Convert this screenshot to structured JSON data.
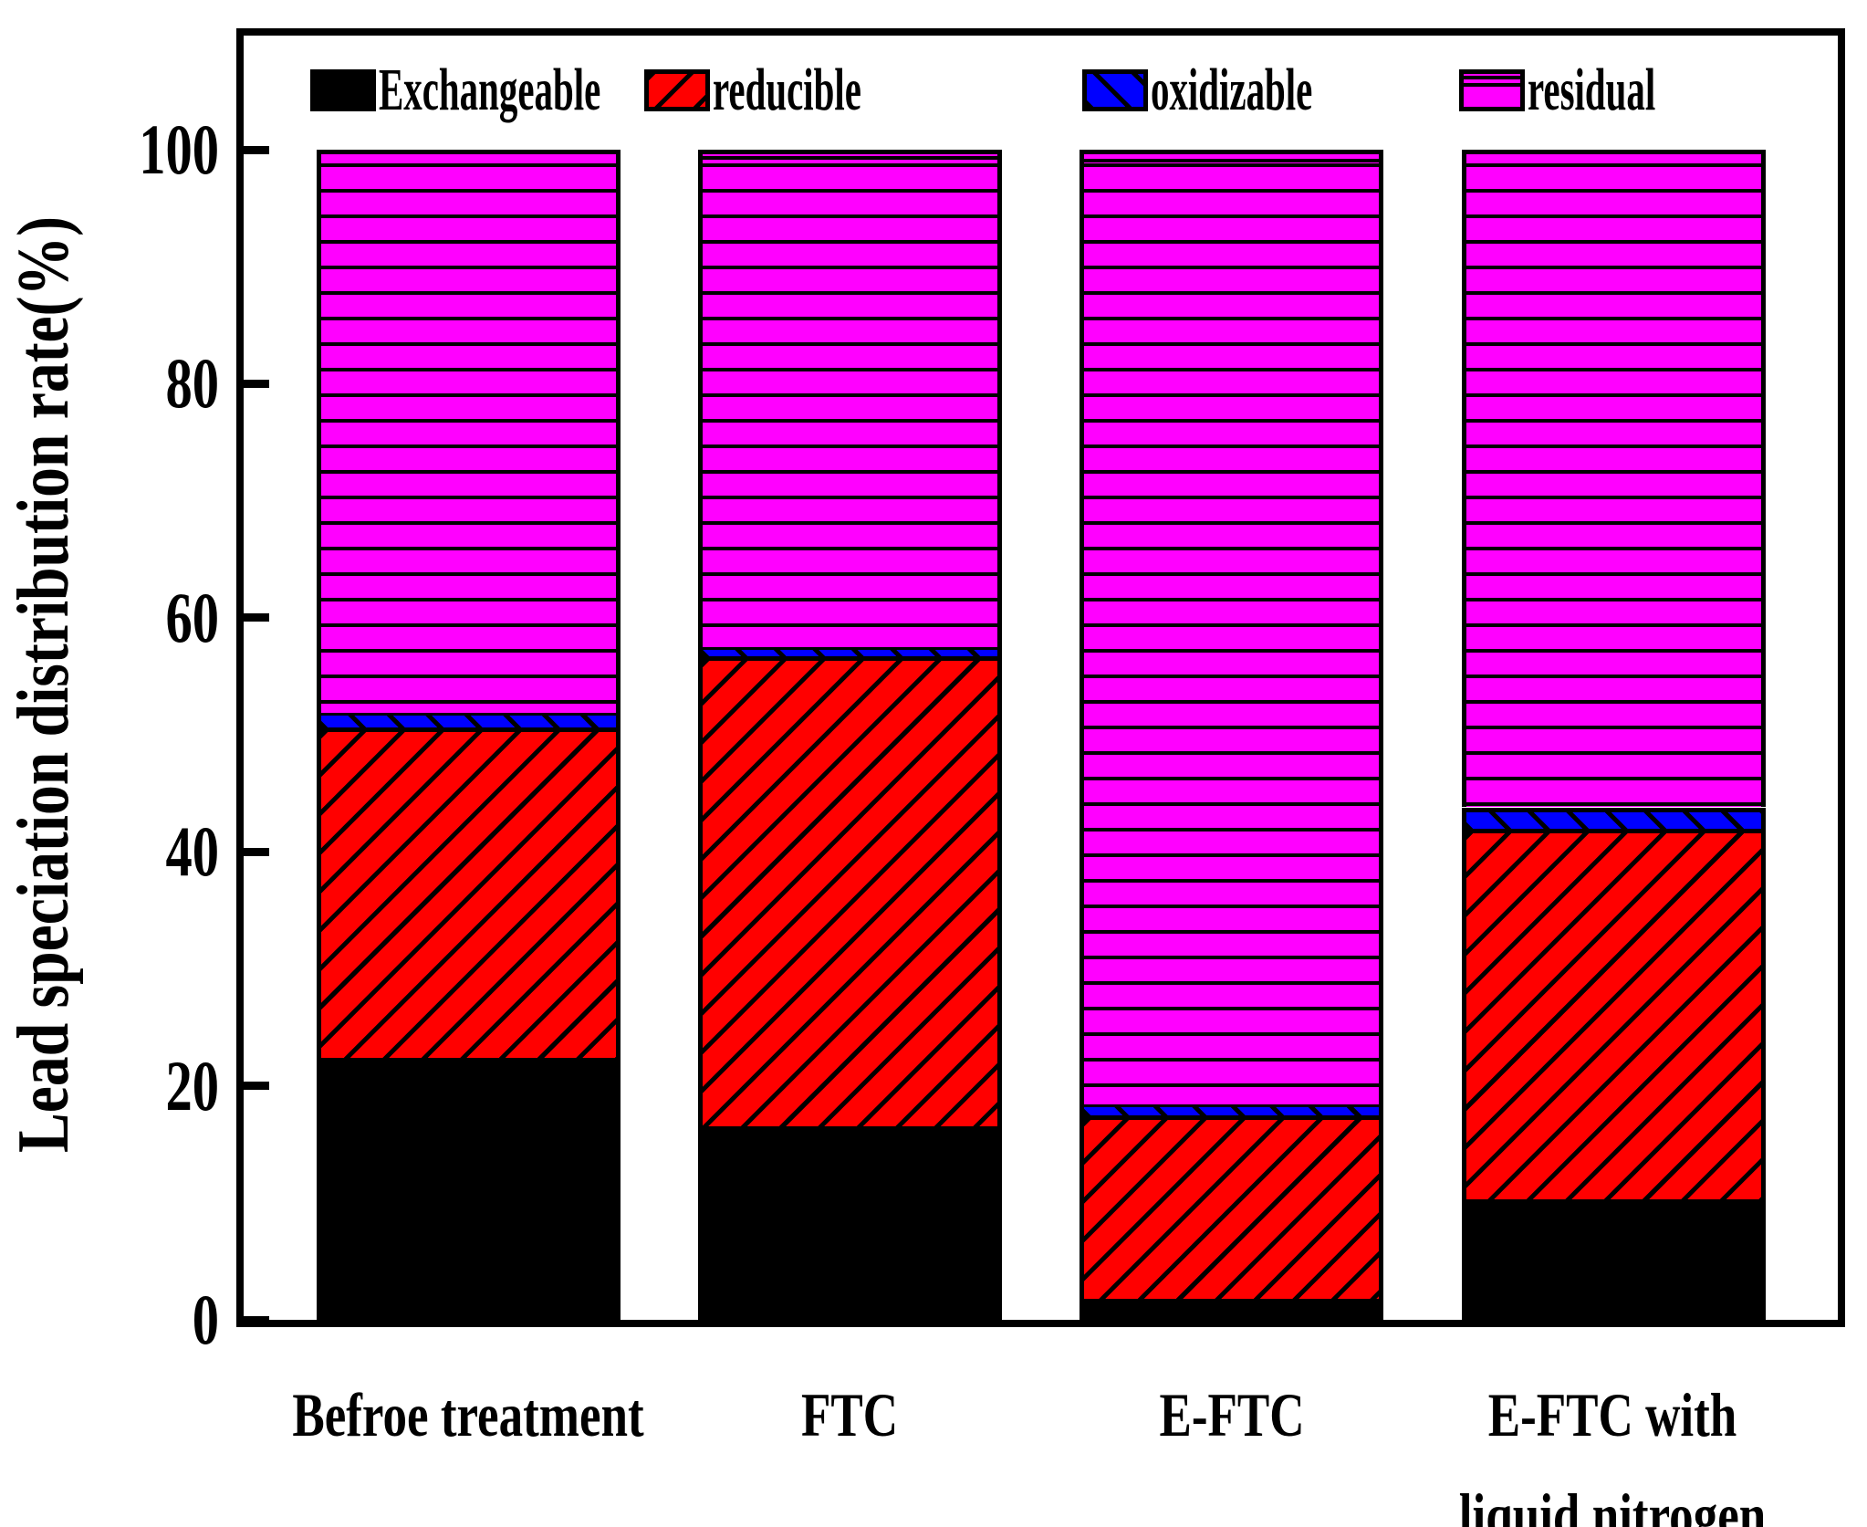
{
  "figure": {
    "background": "#ffffff",
    "frame_color": "#000000"
  },
  "chart_data": {
    "type": "bar",
    "stacked": true,
    "title": "",
    "xlabel": "",
    "ylabel": "Lead speciation distribution rate(%)",
    "ylim": [
      0,
      100
    ],
    "yticks": [
      "0",
      "20",
      "40",
      "60",
      "80",
      "100"
    ],
    "grid": false,
    "legend_position": "top-inside",
    "categories": [
      "Befroe treatment",
      "FTC",
      "E-FTC",
      "E-FTC with\nliquid nitrogen"
    ],
    "series": [
      {
        "name": "Exchangeable",
        "color": "#000000",
        "hatch": "none",
        "values": [
          22.4,
          16.5,
          1.8,
          10.3
        ]
      },
      {
        "name": "reducible",
        "color": "#ff0000",
        "hatch": "forward-diagonal",
        "values": [
          28.2,
          40.2,
          15.7,
          31.7
        ]
      },
      {
        "name": "oxidizable",
        "color": "#0000ff",
        "hatch": "back-diagonal",
        "values": [
          1.3,
          0.8,
          0.9,
          1.8
        ]
      },
      {
        "name": "residual",
        "color": "#ff00ff",
        "hatch": "horizontal",
        "values": [
          48.1,
          42.5,
          81.6,
          56.2
        ]
      }
    ]
  }
}
